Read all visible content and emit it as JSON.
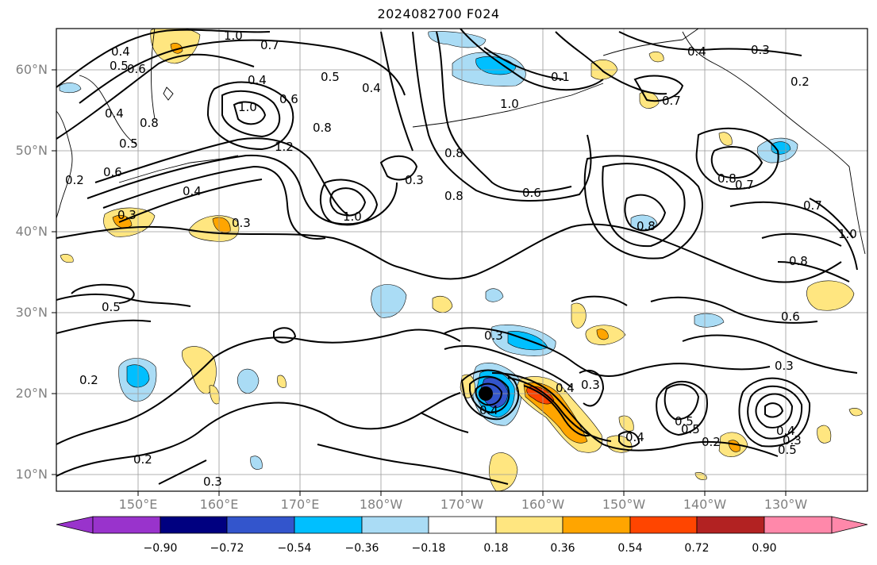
{
  "title": "2024082700 F024",
  "lat_labels": [
    "60°N",
    "50°N",
    "40°N",
    "30°N",
    "20°N",
    "10°N"
  ],
  "lon_labels": [
    "150°E",
    "160°E",
    "170°E",
    "180°W",
    "170°W",
    "160°W",
    "150°W",
    "140°W",
    "130°W"
  ],
  "colorbar": {
    "ticks": [
      "−0.90",
      "−0.72",
      "−0.54",
      "−0.36",
      "−0.18",
      "0.18",
      "0.36",
      "0.54",
      "0.72",
      "0.90"
    ],
    "colors": [
      "#9933cc",
      "#000080",
      "#3355cc",
      "#00bfff",
      "#aadcf5",
      "#ffffff",
      "#ffe680",
      "#ffa500",
      "#ff4500",
      "#b22222",
      "#ff88aa"
    ]
  },
  "contour_labels": [
    "1.0",
    "0.7",
    "0.4",
    "0.5",
    "0.6",
    "0.4",
    "0.5",
    "0.4",
    "0.5",
    "0.6",
    "0.8",
    "1.0",
    "0.6",
    "0.8",
    "1.2",
    "1.0",
    "0.3",
    "0.8",
    "0.4",
    "0.3",
    "0.2",
    "0.4",
    "0.1",
    "0.8",
    "0.3",
    "0.7",
    "0.4",
    "0.3",
    "0.5",
    "1.0",
    "0.6",
    "0.8",
    "0.7",
    "0.8",
    "1.0",
    "0.8",
    "0.6",
    "0.5",
    "0.3",
    "0.3",
    "0.4",
    "0.4",
    "0.3",
    "0.5",
    "0.4",
    "0.2",
    "0.2",
    "0.2",
    "0.3",
    "0.4",
    "0.3",
    "0.2",
    "0.7",
    "0.5"
  ]
}
